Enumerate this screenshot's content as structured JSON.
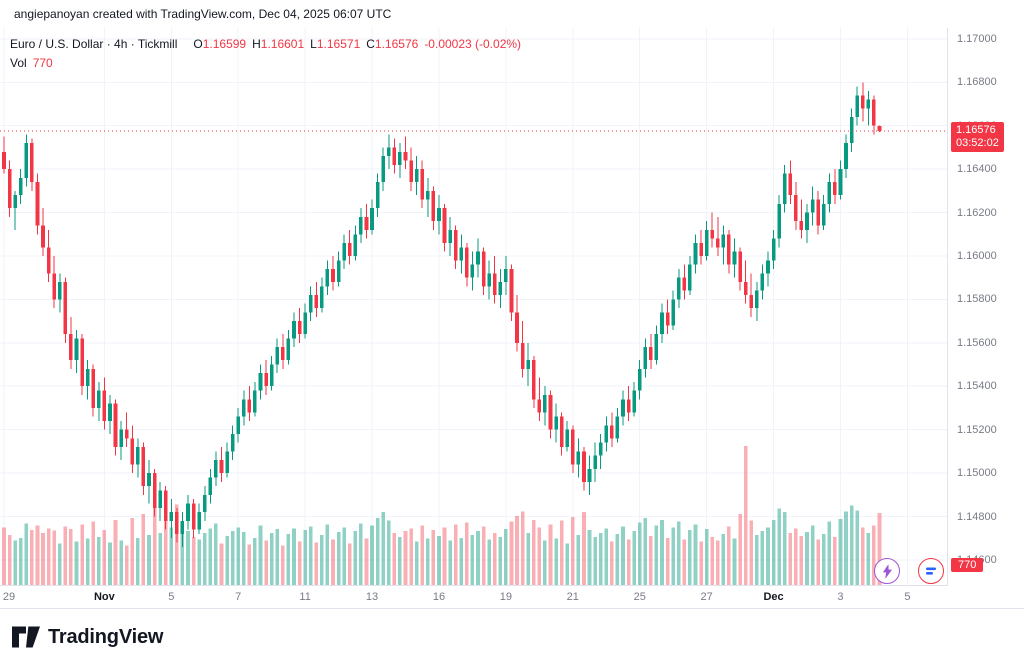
{
  "attribution": {
    "text": "angiepanoyan created with TradingView.com, Dec 04, 2025 06:07 UTC"
  },
  "header": {
    "title": "Euro / U.S. Dollar · 4h · Tickmill",
    "o_label": "O",
    "o": "1.16599",
    "h_label": "H",
    "h": "1.16601",
    "l_label": "L",
    "l": "1.16571",
    "c_label": "C",
    "c": "1.16576",
    "change": "-0.00023 (-0.02%)",
    "vol_label": "Vol",
    "vol_value": "770"
  },
  "price_axis": {
    "labels": [
      "1.17000",
      "1.16800",
      "1.16600",
      "1.16400",
      "1.16200",
      "1.16000",
      "1.15800",
      "1.15600",
      "1.15400",
      "1.15200",
      "1.15000",
      "1.14800",
      "1.14600"
    ],
    "current_price_label": "1.16576",
    "countdown": "03:52:02",
    "volume_badge": "770"
  },
  "footer": {
    "brand": "TradingView"
  },
  "chart_data": {
    "type": "candlestick",
    "title": "Euro / U.S. Dollar · 4h · Tickmill",
    "ylim": [
      1.1448,
      1.1705
    ],
    "x_slots": 170,
    "vol_max": 1480,
    "current_price": 1.16576,
    "colors": {
      "up": "#089981",
      "down": "#f23645",
      "vol_up": "rgba(8,153,129,0.45)",
      "vol_down": "rgba(242,54,69,0.4)",
      "grid": "#f0f3fa"
    },
    "time_labels": [
      {
        "text": "29",
        "idx": 0,
        "major": false
      },
      {
        "text": "Nov",
        "idx": 18,
        "major": true
      },
      {
        "text": "5",
        "idx": 30,
        "major": false
      },
      {
        "text": "7",
        "idx": 42,
        "major": false
      },
      {
        "text": "11",
        "idx": 54,
        "major": false
      },
      {
        "text": "13",
        "idx": 66,
        "major": false
      },
      {
        "text": "16",
        "idx": 78,
        "major": false
      },
      {
        "text": "19",
        "idx": 90,
        "major": false
      },
      {
        "text": "21",
        "idx": 102,
        "major": false
      },
      {
        "text": "25",
        "idx": 114,
        "major": false
      },
      {
        "text": "27",
        "idx": 126,
        "major": false
      },
      {
        "text": "Dec",
        "idx": 138,
        "major": true
      },
      {
        "text": "3",
        "idx": 150,
        "major": false
      },
      {
        "text": "5",
        "idx": 162,
        "major": false
      }
    ],
    "candles": [
      [
        1.1648,
        1.1655,
        1.1638,
        1.164,
        620
      ],
      [
        1.164,
        1.1644,
        1.1618,
        1.1622,
        540
      ],
      [
        1.1622,
        1.163,
        1.1612,
        1.1628,
        480
      ],
      [
        1.1628,
        1.164,
        1.1624,
        1.1636,
        510
      ],
      [
        1.1636,
        1.1656,
        1.1632,
        1.1652,
        660
      ],
      [
        1.1652,
        1.1654,
        1.163,
        1.1634,
        590
      ],
      [
        1.1634,
        1.1638,
        1.161,
        1.1614,
        640
      ],
      [
        1.1614,
        1.1622,
        1.16,
        1.1604,
        560
      ],
      [
        1.1604,
        1.1612,
        1.1588,
        1.1592,
        610
      ],
      [
        1.1592,
        1.16,
        1.1576,
        1.158,
        585
      ],
      [
        1.158,
        1.1592,
        1.1574,
        1.1588,
        450
      ],
      [
        1.1588,
        1.159,
        1.156,
        1.1564,
        630
      ],
      [
        1.1564,
        1.1572,
        1.1548,
        1.1552,
        600
      ],
      [
        1.1552,
        1.1566,
        1.1546,
        1.1562,
        470
      ],
      [
        1.1562,
        1.1564,
        1.1536,
        1.154,
        650
      ],
      [
        1.154,
        1.1552,
        1.1534,
        1.1548,
        500
      ],
      [
        1.1548,
        1.155,
        1.1526,
        1.153,
        680
      ],
      [
        1.153,
        1.1542,
        1.1524,
        1.1538,
        520
      ],
      [
        1.1538,
        1.1544,
        1.152,
        1.1524,
        590
      ],
      [
        1.1524,
        1.1536,
        1.1518,
        1.1532,
        460
      ],
      [
        1.1532,
        1.1534,
        1.1508,
        1.1512,
        700
      ],
      [
        1.1512,
        1.1524,
        1.1506,
        1.152,
        480
      ],
      [
        1.152,
        1.1528,
        1.1512,
        1.1516,
        430
      ],
      [
        1.1516,
        1.1522,
        1.15,
        1.1504,
        720
      ],
      [
        1.1504,
        1.1516,
        1.1498,
        1.1512,
        510
      ],
      [
        1.1512,
        1.1514,
        1.149,
        1.1494,
        760
      ],
      [
        1.1494,
        1.1506,
        1.1486,
        1.15,
        540
      ],
      [
        1.15,
        1.1502,
        1.148,
        1.1484,
        830
      ],
      [
        1.1484,
        1.1496,
        1.1478,
        1.1492,
        560
      ],
      [
        1.1492,
        1.1494,
        1.1474,
        1.1478,
        700
      ],
      [
        1.1478,
        1.1488,
        1.147,
        1.1482,
        620
      ],
      [
        1.1482,
        1.1484,
        1.1468,
        1.1472,
        860
      ],
      [
        1.1472,
        1.1482,
        1.1466,
        1.1478,
        640
      ],
      [
        1.1478,
        1.149,
        1.1474,
        1.1486,
        580
      ],
      [
        1.1486,
        1.1488,
        1.147,
        1.1474,
        520
      ],
      [
        1.1474,
        1.1486,
        1.1472,
        1.1482,
        490
      ],
      [
        1.1482,
        1.1494,
        1.1478,
        1.149,
        560
      ],
      [
        1.149,
        1.1502,
        1.1486,
        1.1498,
        610
      ],
      [
        1.1498,
        1.151,
        1.1494,
        1.1506,
        660
      ],
      [
        1.1506,
        1.1512,
        1.1496,
        1.15,
        450
      ],
      [
        1.15,
        1.1514,
        1.1498,
        1.151,
        530
      ],
      [
        1.151,
        1.1522,
        1.1506,
        1.1518,
        580
      ],
      [
        1.1518,
        1.153,
        1.1514,
        1.1526,
        620
      ],
      [
        1.1526,
        1.1538,
        1.1522,
        1.1534,
        570
      ],
      [
        1.1534,
        1.154,
        1.1524,
        1.1528,
        440
      ],
      [
        1.1528,
        1.1542,
        1.1526,
        1.1538,
        510
      ],
      [
        1.1538,
        1.155,
        1.1534,
        1.1546,
        640
      ],
      [
        1.1546,
        1.1552,
        1.1536,
        1.154,
        480
      ],
      [
        1.154,
        1.1554,
        1.1538,
        1.155,
        560
      ],
      [
        1.155,
        1.1562,
        1.1546,
        1.1558,
        600
      ],
      [
        1.1558,
        1.1564,
        1.1548,
        1.1552,
        430
      ],
      [
        1.1552,
        1.1566,
        1.155,
        1.1562,
        550
      ],
      [
        1.1562,
        1.1574,
        1.1558,
        1.157,
        610
      ],
      [
        1.157,
        1.1576,
        1.156,
        1.1564,
        470
      ],
      [
        1.1564,
        1.1578,
        1.1562,
        1.1574,
        590
      ],
      [
        1.1574,
        1.1586,
        1.157,
        1.1582,
        630
      ],
      [
        1.1582,
        1.1588,
        1.1572,
        1.1576,
        460
      ],
      [
        1.1576,
        1.159,
        1.1574,
        1.1586,
        540
      ],
      [
        1.1586,
        1.1598,
        1.1582,
        1.1594,
        650
      ],
      [
        1.1594,
        1.16,
        1.1584,
        1.1588,
        490
      ],
      [
        1.1588,
        1.1602,
        1.1586,
        1.1598,
        570
      ],
      [
        1.1598,
        1.161,
        1.1594,
        1.1606,
        620
      ],
      [
        1.1606,
        1.1612,
        1.1596,
        1.16,
        450
      ],
      [
        1.16,
        1.1614,
        1.1598,
        1.161,
        580
      ],
      [
        1.161,
        1.1622,
        1.1606,
        1.1618,
        660
      ],
      [
        1.1618,
        1.1624,
        1.1608,
        1.1612,
        500
      ],
      [
        1.1612,
        1.1626,
        1.161,
        1.1622,
        640
      ],
      [
        1.1622,
        1.1638,
        1.1618,
        1.1634,
        720
      ],
      [
        1.1634,
        1.165,
        1.163,
        1.1646,
        780
      ],
      [
        1.1646,
        1.1656,
        1.164,
        1.165,
        690
      ],
      [
        1.165,
        1.1654,
        1.1638,
        1.1642,
        560
      ],
      [
        1.1642,
        1.1652,
        1.1636,
        1.1648,
        520
      ],
      [
        1.1648,
        1.1655,
        1.164,
        1.1644,
        580
      ],
      [
        1.1644,
        1.165,
        1.163,
        1.1634,
        610
      ],
      [
        1.1634,
        1.1646,
        1.1628,
        1.164,
        470
      ],
      [
        1.164,
        1.1644,
        1.1622,
        1.1626,
        640
      ],
      [
        1.1626,
        1.1636,
        1.1618,
        1.163,
        500
      ],
      [
        1.163,
        1.1632,
        1.1612,
        1.1616,
        590
      ],
      [
        1.1616,
        1.1628,
        1.161,
        1.1622,
        530
      ],
      [
        1.1622,
        1.1624,
        1.1602,
        1.1606,
        620
      ],
      [
        1.1606,
        1.1618,
        1.16,
        1.1612,
        480
      ],
      [
        1.1612,
        1.1614,
        1.1594,
        1.1598,
        650
      ],
      [
        1.1598,
        1.161,
        1.1592,
        1.1604,
        510
      ],
      [
        1.1604,
        1.1606,
        1.1586,
        1.159,
        670
      ],
      [
        1.159,
        1.1602,
        1.1584,
        1.1596,
        540
      ],
      [
        1.1596,
        1.1608,
        1.159,
        1.1602,
        580
      ],
      [
        1.1602,
        1.1604,
        1.1582,
        1.1586,
        630
      ],
      [
        1.1586,
        1.1598,
        1.158,
        1.1592,
        490
      ],
      [
        1.1592,
        1.16,
        1.1578,
        1.1582,
        560
      ],
      [
        1.1582,
        1.1594,
        1.1576,
        1.1588,
        520
      ],
      [
        1.1588,
        1.16,
        1.1582,
        1.1594,
        600
      ],
      [
        1.1594,
        1.1596,
        1.157,
        1.1574,
        680
      ],
      [
        1.1574,
        1.1582,
        1.1556,
        1.156,
        740
      ],
      [
        1.156,
        1.157,
        1.1544,
        1.1548,
        790
      ],
      [
        1.1548,
        1.156,
        1.154,
        1.1552,
        560
      ],
      [
        1.1552,
        1.1554,
        1.153,
        1.1534,
        700
      ],
      [
        1.1534,
        1.1544,
        1.1524,
        1.1528,
        620
      ],
      [
        1.1528,
        1.154,
        1.1522,
        1.1536,
        480
      ],
      [
        1.1536,
        1.1538,
        1.1516,
        1.152,
        650
      ],
      [
        1.152,
        1.1532,
        1.1514,
        1.1526,
        500
      ],
      [
        1.1526,
        1.1528,
        1.1508,
        1.1512,
        690
      ],
      [
        1.1512,
        1.1524,
        1.151,
        1.152,
        450
      ],
      [
        1.152,
        1.1522,
        1.15,
        1.1504,
        730
      ],
      [
        1.1504,
        1.1516,
        1.1498,
        1.151,
        540
      ],
      [
        1.151,
        1.1512,
        1.1492,
        1.1496,
        780
      ],
      [
        1.1496,
        1.1508,
        1.149,
        1.1502,
        590
      ],
      [
        1.1502,
        1.1514,
        1.1496,
        1.1508,
        520
      ],
      [
        1.1508,
        1.1518,
        1.1502,
        1.1514,
        560
      ],
      [
        1.1514,
        1.1526,
        1.151,
        1.1522,
        610
      ],
      [
        1.1522,
        1.1528,
        1.1512,
        1.1516,
        470
      ],
      [
        1.1516,
        1.153,
        1.1514,
        1.1526,
        550
      ],
      [
        1.1526,
        1.1538,
        1.1522,
        1.1534,
        630
      ],
      [
        1.1534,
        1.154,
        1.1524,
        1.1528,
        490
      ],
      [
        1.1528,
        1.1542,
        1.1526,
        1.1538,
        580
      ],
      [
        1.1538,
        1.1552,
        1.1534,
        1.1548,
        670
      ],
      [
        1.1548,
        1.1562,
        1.1544,
        1.1558,
        720
      ],
      [
        1.1558,
        1.1564,
        1.1548,
        1.1552,
        530
      ],
      [
        1.1552,
        1.1568,
        1.155,
        1.1564,
        640
      ],
      [
        1.1564,
        1.1578,
        1.156,
        1.1574,
        700
      ],
      [
        1.1574,
        1.158,
        1.1564,
        1.1568,
        510
      ],
      [
        1.1568,
        1.1584,
        1.1566,
        1.158,
        620
      ],
      [
        1.158,
        1.1594,
        1.1576,
        1.159,
        680
      ],
      [
        1.159,
        1.1596,
        1.158,
        1.1584,
        490
      ],
      [
        1.1584,
        1.16,
        1.1582,
        1.1596,
        590
      ],
      [
        1.1596,
        1.161,
        1.1592,
        1.1606,
        650
      ],
      [
        1.1606,
        1.1612,
        1.1596,
        1.16,
        470
      ],
      [
        1.16,
        1.1616,
        1.1598,
        1.1612,
        600
      ],
      [
        1.1612,
        1.162,
        1.1604,
        1.1608,
        520
      ],
      [
        1.1608,
        1.1618,
        1.16,
        1.1604,
        480
      ],
      [
        1.1604,
        1.1614,
        1.1596,
        1.161,
        550
      ],
      [
        1.161,
        1.1612,
        1.1592,
        1.1596,
        630
      ],
      [
        1.1596,
        1.1608,
        1.159,
        1.1602,
        500
      ],
      [
        1.1602,
        1.1604,
        1.1584,
        1.1588,
        760
      ],
      [
        1.1588,
        1.1598,
        1.1578,
        1.1582,
        1480
      ],
      [
        1.1582,
        1.1592,
        1.1572,
        1.1576,
        690
      ],
      [
        1.1576,
        1.1588,
        1.157,
        1.1584,
        540
      ],
      [
        1.1584,
        1.1596,
        1.158,
        1.1592,
        580
      ],
      [
        1.1592,
        1.1602,
        1.1586,
        1.1598,
        620
      ],
      [
        1.1598,
        1.1612,
        1.1594,
        1.1608,
        700
      ],
      [
        1.1608,
        1.1628,
        1.1604,
        1.1624,
        820
      ],
      [
        1.1624,
        1.1642,
        1.162,
        1.1638,
        780
      ],
      [
        1.1638,
        1.1644,
        1.1624,
        1.1628,
        560
      ],
      [
        1.1628,
        1.1634,
        1.1612,
        1.1616,
        610
      ],
      [
        1.1616,
        1.1626,
        1.1608,
        1.1612,
        530
      ],
      [
        1.1612,
        1.1624,
        1.1606,
        1.162,
        570
      ],
      [
        1.162,
        1.1632,
        1.1614,
        1.1626,
        640
      ],
      [
        1.1626,
        1.163,
        1.161,
        1.1614,
        490
      ],
      [
        1.1614,
        1.1628,
        1.1612,
        1.1624,
        550
      ],
      [
        1.1624,
        1.1638,
        1.162,
        1.1634,
        680
      ],
      [
        1.1634,
        1.164,
        1.1624,
        1.1628,
        520
      ],
      [
        1.1628,
        1.1644,
        1.1626,
        1.164,
        710
      ],
      [
        1.164,
        1.1656,
        1.1636,
        1.1652,
        790
      ],
      [
        1.1652,
        1.1668,
        1.1648,
        1.1664,
        850
      ],
      [
        1.1664,
        1.1678,
        1.166,
        1.1674,
        800
      ],
      [
        1.1674,
        1.168,
        1.1662,
        1.1668,
        620
      ],
      [
        1.1668,
        1.1676,
        1.166,
        1.1672,
        560
      ],
      [
        1.1672,
        1.1674,
        1.1656,
        1.166,
        640
      ],
      [
        1.16599,
        1.16601,
        1.16571,
        1.16576,
        770
      ]
    ]
  }
}
